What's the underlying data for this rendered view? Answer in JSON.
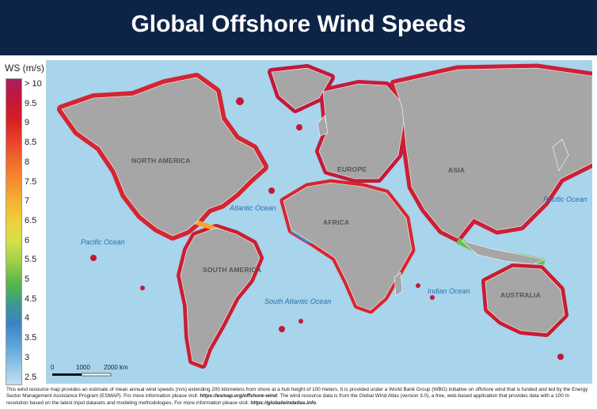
{
  "header": {
    "title": "Global Offshore Wind Speeds"
  },
  "legend": {
    "title": "WS (m/s)",
    "ticks": [
      "> 10",
      "9.5",
      "9",
      "8.5",
      "8",
      "7.5",
      "7",
      "6.5",
      "6",
      "5.5",
      "5",
      "4.5",
      "4",
      "3.5",
      "3",
      "2.5"
    ],
    "colors": [
      "#a8205a",
      "#c2183a",
      "#d81d24",
      "#e8412a",
      "#f06a2c",
      "#f48d30",
      "#f4b232",
      "#f0d03a",
      "#d6e04a",
      "#9cce4a",
      "#58b848",
      "#3a9c8c",
      "#3c82c4",
      "#5aa2d8",
      "#8ec2e6",
      "#c4e0f2"
    ]
  },
  "map": {
    "regions": {
      "north_america": "NORTH AMERICA",
      "south_america": "SOUTH AMERICA",
      "europe": "EUROPE",
      "africa": "AFRICA",
      "asia": "ASIA",
      "australia": "AUSTRALIA"
    },
    "oceans": {
      "atlantic": "Atlantic Ocean",
      "south_atlantic": "South Atlantic Ocean",
      "pacific_east": "Pacific Ocean",
      "pacific_west": "Pacific Ocean",
      "indian": "Indian Ocean"
    },
    "scale": {
      "zero": "0",
      "mid": "1000",
      "end": "2000 km"
    },
    "colors": {
      "ocean": "#a8d4ec",
      "land": "#a6a6a6"
    }
  },
  "footer": {
    "text1": "This wind resource map provides an estimate of mean annual wind speeds (m/s) extending 200 kilometers from shore at a hub height of 100 meters. It is provided under a World Bank Group (WBG) initiative on offshore wind that is funded and led by the Energy Sector Management Assistance Program (ESMAP). For more information please visit: ",
    "link1": "https://esmap.org/offshore-wind",
    "text2": ". The wind resource data is from the Global Wind Atlas (version 3.0), a free, web-based application that provides data with a 100 m resolution based on the latest input datasets and modeling methodologies. For more information please visit: ",
    "link2": "https://globalwindatlas.info",
    "text3": "."
  }
}
